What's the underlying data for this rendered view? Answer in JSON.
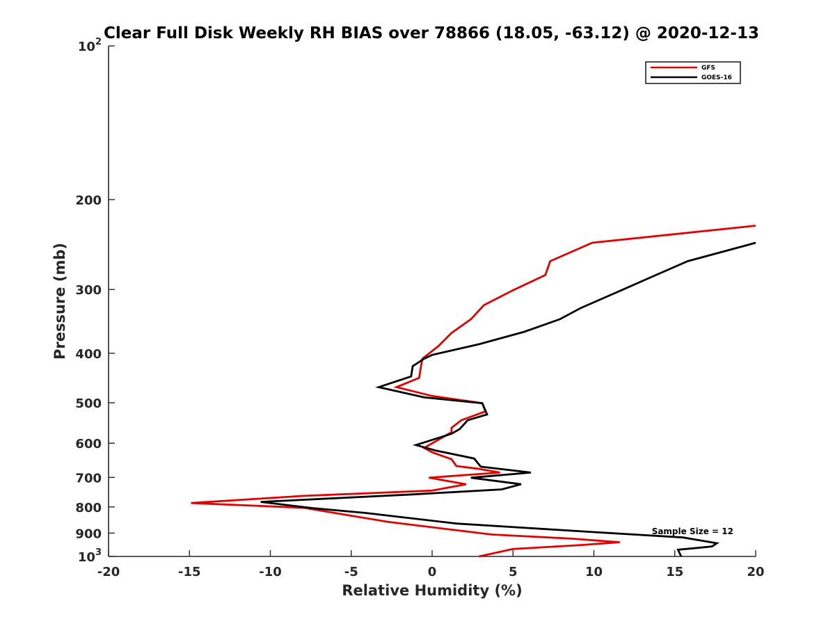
{
  "chart_data": {
    "type": "line",
    "title": "Clear Full Disk Weekly RH BIAS over 78866 (18.05, -63.12) @ 2020-12-13",
    "xlabel": "Relative Humidity (%)",
    "ylabel": "Pressure (mb)",
    "xlim": [
      -20,
      20
    ],
    "ylim": [
      100,
      1000
    ],
    "yscale": "log",
    "y_reversed": true,
    "grid": false,
    "x_ticks": [
      {
        "value": -20,
        "label": "-20"
      },
      {
        "value": -15,
        "label": "-15"
      },
      {
        "value": -10,
        "label": "-10"
      },
      {
        "value": -5,
        "label": "-5"
      },
      {
        "value": 0,
        "label": "0"
      },
      {
        "value": 5,
        "label": "5"
      },
      {
        "value": 10,
        "label": "10"
      },
      {
        "value": 15,
        "label": "15"
      },
      {
        "value": 20,
        "label": "20"
      }
    ],
    "y_ticks": [
      {
        "value": 100,
        "label": "10",
        "sup": "2"
      },
      {
        "value": 200,
        "label": "200"
      },
      {
        "value": 300,
        "label": "300"
      },
      {
        "value": 400,
        "label": "400"
      },
      {
        "value": 500,
        "label": "500"
      },
      {
        "value": 600,
        "label": "600"
      },
      {
        "value": 700,
        "label": "700"
      },
      {
        "value": 800,
        "label": "800"
      },
      {
        "value": 900,
        "label": "900"
      },
      {
        "value": 1000,
        "label": "10",
        "sup": "3"
      }
    ],
    "legend": {
      "position": "top-right"
    },
    "series": [
      {
        "name": "GFS",
        "color": "#e00000",
        "points": [
          {
            "x": 20.0,
            "y": 225
          },
          {
            "x": 9.9,
            "y": 243
          },
          {
            "x": 7.3,
            "y": 264
          },
          {
            "x": 7.0,
            "y": 281
          },
          {
            "x": 5.0,
            "y": 301
          },
          {
            "x": 3.2,
            "y": 322
          },
          {
            "x": 2.4,
            "y": 343
          },
          {
            "x": 1.2,
            "y": 365
          },
          {
            "x": 0.4,
            "y": 387
          },
          {
            "x": -0.6,
            "y": 410
          },
          {
            "x": -0.7,
            "y": 427
          },
          {
            "x": -0.8,
            "y": 447
          },
          {
            "x": -2.2,
            "y": 466
          },
          {
            "x": 0.0,
            "y": 485
          },
          {
            "x": 3.1,
            "y": 501
          },
          {
            "x": 3.3,
            "y": 520
          },
          {
            "x": 1.8,
            "y": 541
          },
          {
            "x": 1.2,
            "y": 560
          },
          {
            "x": 1.2,
            "y": 571
          },
          {
            "x": -0.5,
            "y": 613
          },
          {
            "x": 0.0,
            "y": 625
          },
          {
            "x": 1.2,
            "y": 645
          },
          {
            "x": 1.5,
            "y": 665
          },
          {
            "x": 2.8,
            "y": 673
          },
          {
            "x": 4.2,
            "y": 685
          },
          {
            "x": -0.2,
            "y": 701
          },
          {
            "x": 2.1,
            "y": 722
          },
          {
            "x": 0.0,
            "y": 743
          },
          {
            "x": -7.9,
            "y": 761
          },
          {
            "x": -14.9,
            "y": 786
          },
          {
            "x": -7.9,
            "y": 803
          },
          {
            "x": -5.6,
            "y": 826
          },
          {
            "x": -2.7,
            "y": 856
          },
          {
            "x": 3.7,
            "y": 906
          },
          {
            "x": 8.7,
            "y": 923
          },
          {
            "x": 11.6,
            "y": 938
          },
          {
            "x": 9.2,
            "y": 950
          },
          {
            "x": 5.0,
            "y": 967
          },
          {
            "x": 2.9,
            "y": 1000
          }
        ]
      },
      {
        "name": "GOES-16",
        "color": "#000000",
        "points": [
          {
            "x": 20.0,
            "y": 243
          },
          {
            "x": 19.6,
            "y": 245
          },
          {
            "x": 15.8,
            "y": 264
          },
          {
            "x": 13.4,
            "y": 285
          },
          {
            "x": 11.7,
            "y": 301
          },
          {
            "x": 9.2,
            "y": 326
          },
          {
            "x": 7.9,
            "y": 343
          },
          {
            "x": 5.7,
            "y": 363
          },
          {
            "x": 2.9,
            "y": 384
          },
          {
            "x": 0.0,
            "y": 403
          },
          {
            "x": -0.5,
            "y": 410
          },
          {
            "x": -1.2,
            "y": 424
          },
          {
            "x": -1.3,
            "y": 444
          },
          {
            "x": -3.3,
            "y": 466
          },
          {
            "x": -0.5,
            "y": 488
          },
          {
            "x": 3.1,
            "y": 501
          },
          {
            "x": 3.4,
            "y": 527
          },
          {
            "x": 2.2,
            "y": 541
          },
          {
            "x": 1.7,
            "y": 563
          },
          {
            "x": 1.2,
            "y": 575
          },
          {
            "x": -1.0,
            "y": 605
          },
          {
            "x": 0.2,
            "y": 620
          },
          {
            "x": 2.6,
            "y": 643
          },
          {
            "x": 3.0,
            "y": 667
          },
          {
            "x": 6.1,
            "y": 685
          },
          {
            "x": 2.4,
            "y": 701
          },
          {
            "x": 5.5,
            "y": 722
          },
          {
            "x": 4.3,
            "y": 739
          },
          {
            "x": -1.2,
            "y": 756
          },
          {
            "x": -10.6,
            "y": 782
          },
          {
            "x": -7.4,
            "y": 804
          },
          {
            "x": -4.1,
            "y": 822
          },
          {
            "x": 1.5,
            "y": 862
          },
          {
            "x": 10.0,
            "y": 896
          },
          {
            "x": 15.5,
            "y": 918
          },
          {
            "x": 17.6,
            "y": 942
          },
          {
            "x": 17.3,
            "y": 956
          },
          {
            "x": 15.2,
            "y": 970
          },
          {
            "x": 15.4,
            "y": 1000
          }
        ]
      }
    ],
    "annotations": [
      {
        "text": "Sample Size = 12",
        "x": 16.1,
        "y": 905
      }
    ]
  }
}
